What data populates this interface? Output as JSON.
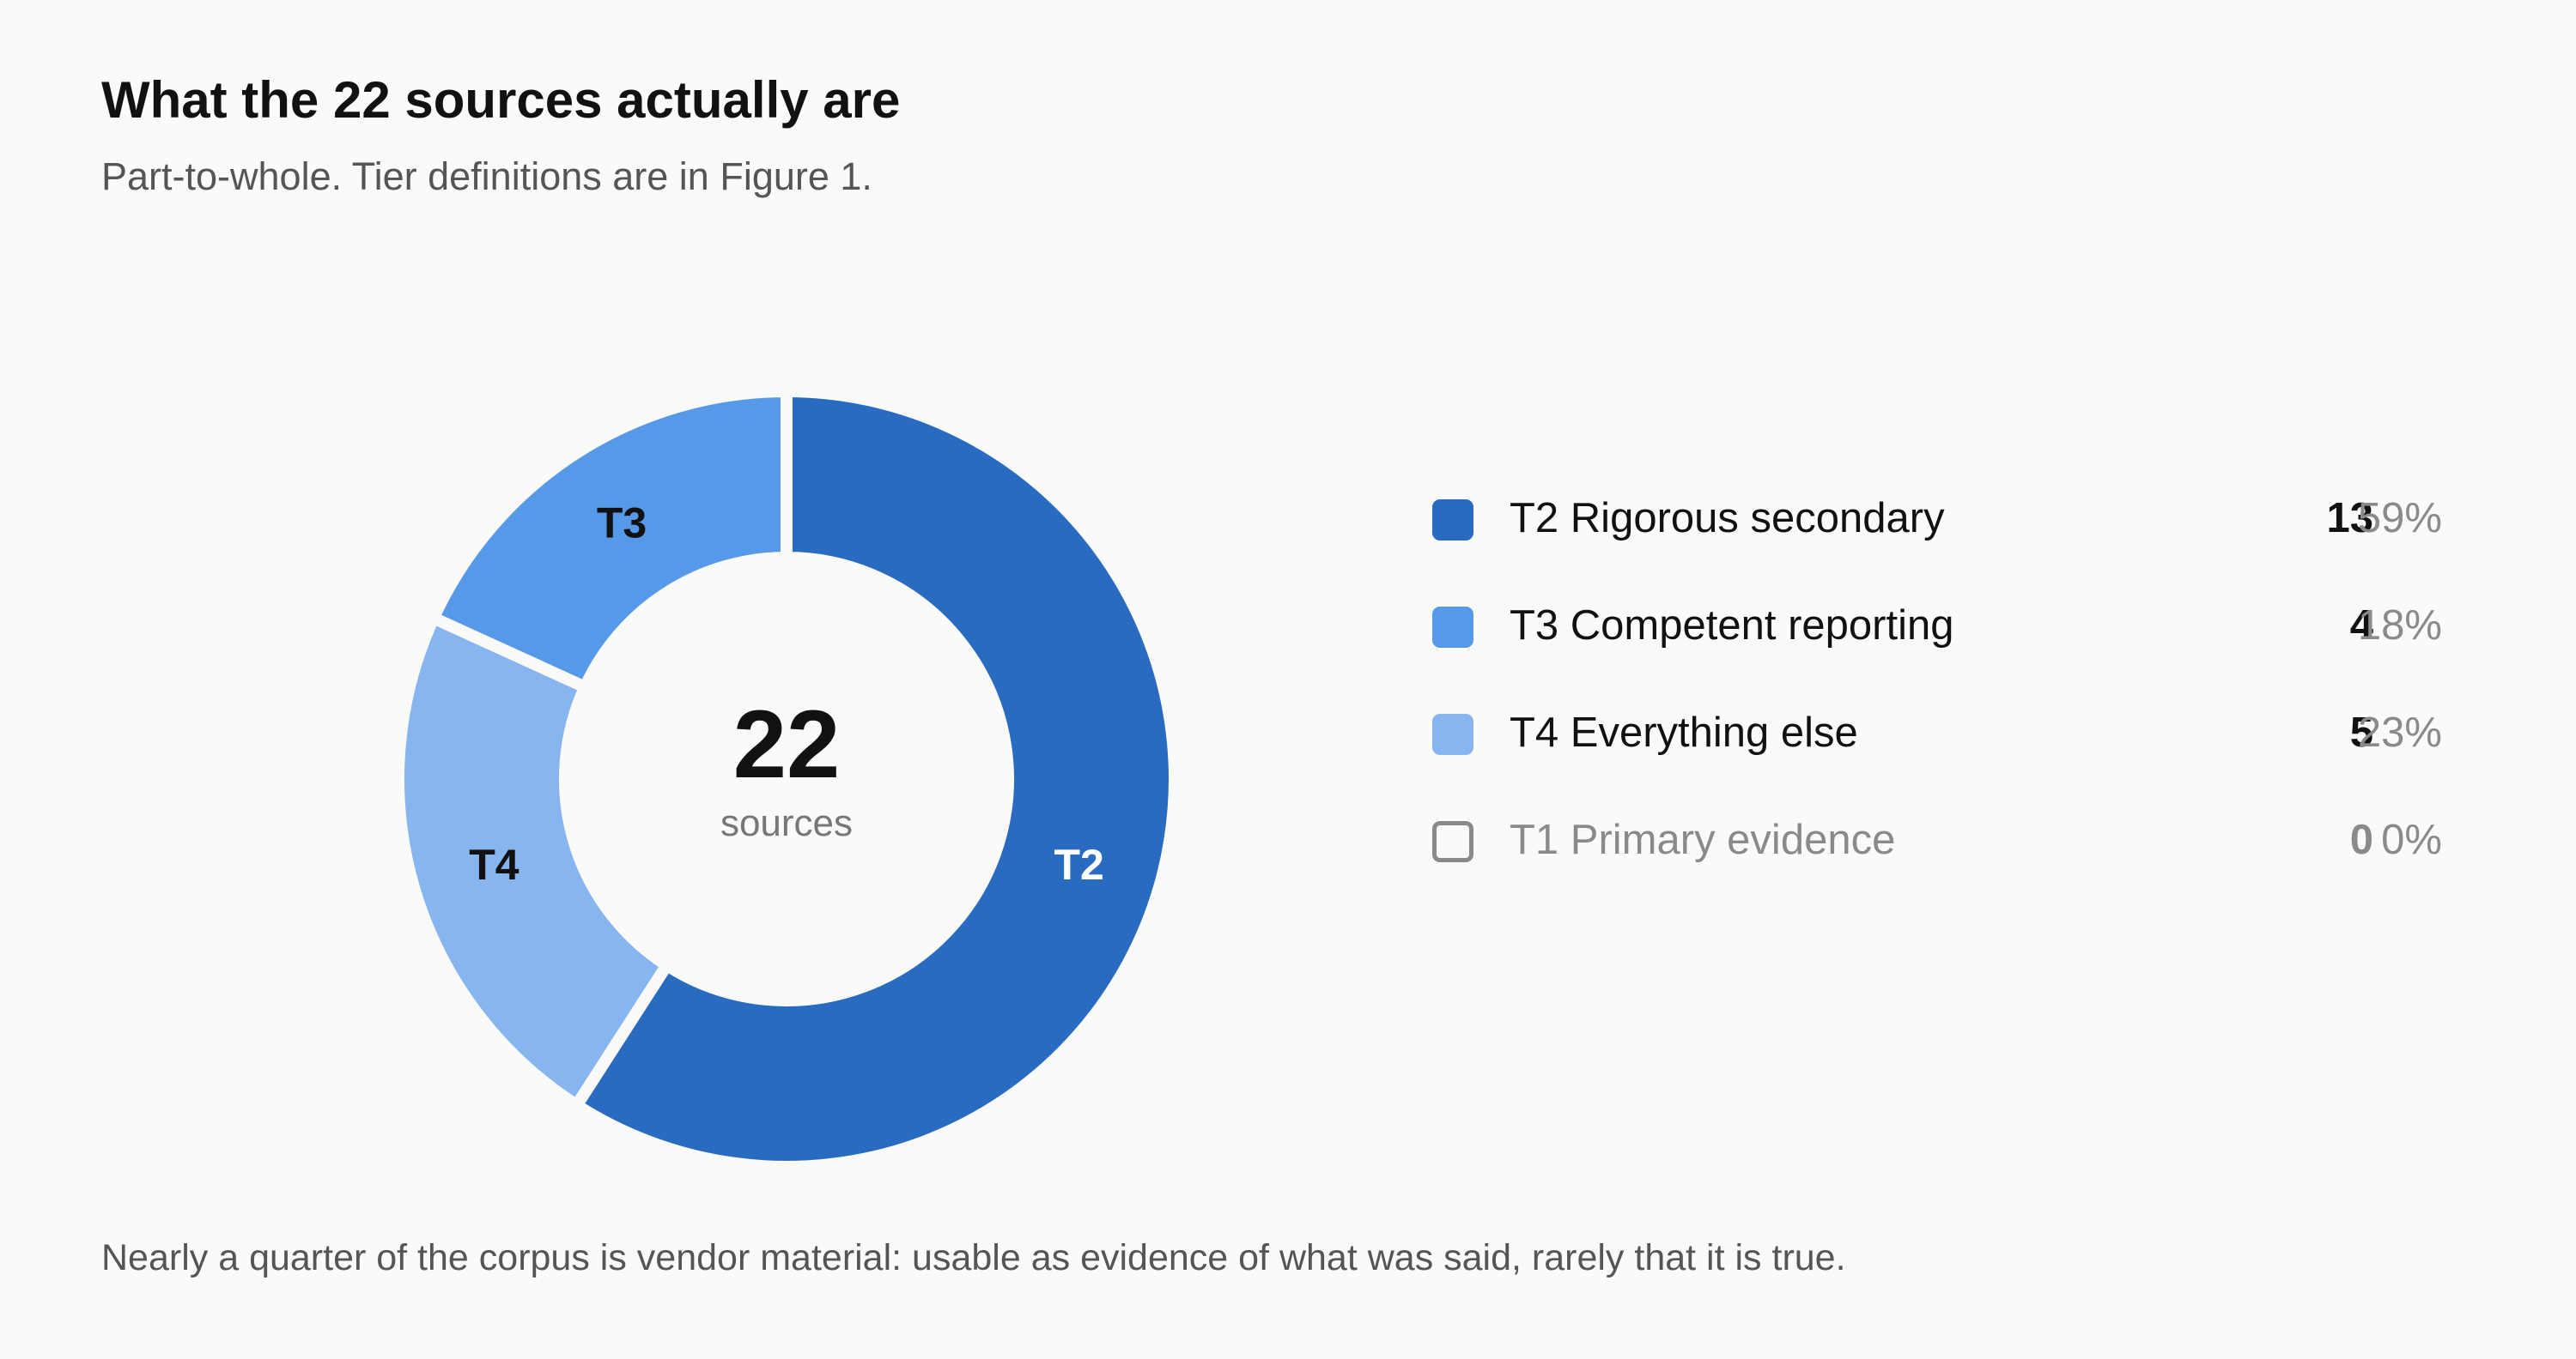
{
  "header": {
    "title": "What the 22 sources actually are",
    "subtitle": "Part-to-whole. Tier definitions are in Figure 1."
  },
  "footnote": "Nearly a quarter of the corpus is vendor material: usable as evidence of what was said, rarely that it is true.",
  "chart_data": {
    "type": "pie",
    "variant": "donut",
    "title": "What the 22 sources actually are",
    "subtitle": "Part-to-whole. Tier definitions are in Figure 1.",
    "center_value": "22",
    "center_label": "sources",
    "total": 22,
    "legend_position": "right",
    "slices": [
      {
        "tier": "T2",
        "label": "T2 Rigorous secondary",
        "value": 13,
        "percent": "59%",
        "color": "#286bc1",
        "label_color": "#ffffff"
      },
      {
        "tier": "T4",
        "label": "T4 Everything else",
        "value": 5,
        "percent": "23%",
        "color": "#87b5f0",
        "label_color": "#111111"
      },
      {
        "tier": "T3",
        "label": "T3 Competent reporting",
        "value": 4,
        "percent": "18%",
        "color": "#5699e8",
        "label_color": "#111111"
      }
    ],
    "legend": [
      {
        "tier": "T2",
        "label": "T2 Rigorous secondary",
        "count": "13",
        "percent": "59%",
        "color": "#286bc1",
        "empty": false
      },
      {
        "tier": "T3",
        "label": "T3 Competent reporting",
        "count": "4",
        "percent": "18%",
        "color": "#5699e8",
        "empty": false
      },
      {
        "tier": "T4",
        "label": "T4 Everything else",
        "count": "5",
        "percent": "23%",
        "color": "#87b5f0",
        "empty": false
      },
      {
        "tier": "T1",
        "label": "T1 Primary evidence",
        "count": "0",
        "percent": "0%",
        "color": "#8a8a8a",
        "empty": true
      }
    ]
  }
}
